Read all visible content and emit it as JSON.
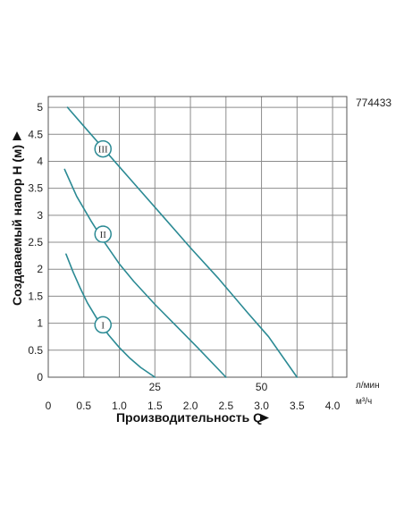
{
  "chart_data": {
    "type": "line",
    "title": "",
    "product_code": "774433",
    "xlabel": "Производительность Q",
    "ylabel": "Создаваемый напор H (м)",
    "x_unit": "м³/ч",
    "secondary_x_unit": "л/мин",
    "xlim": [
      0,
      4.2
    ],
    "ylim": [
      0,
      5.2
    ],
    "x_ticks": [
      0,
      0.5,
      1.0,
      1.5,
      2.0,
      2.5,
      3.0,
      3.5,
      4.0
    ],
    "x_tick_labels": [
      "0",
      "0.5",
      "1.0",
      "1.5",
      "2.0",
      "2.5",
      "3.0",
      "3.5",
      "4.0"
    ],
    "y_ticks": [
      0,
      0.5,
      1,
      1.5,
      2,
      2.5,
      3,
      3.5,
      4,
      4.5,
      5
    ],
    "y_tick_labels": [
      "0",
      "0.5",
      "1",
      "1.5",
      "2",
      "2.5",
      "3",
      "3.5",
      "4",
      "4.5",
      "5"
    ],
    "secondary_x_ticks": [
      {
        "value": 1.5,
        "label": "25"
      },
      {
        "value": 3.0,
        "label": "50"
      }
    ],
    "grid": true,
    "colors": {
      "line": "#2b8a94",
      "grid": "#8c8c8c",
      "frame": "#555555"
    },
    "series": [
      {
        "name": "I",
        "x": [
          0.25,
          0.35,
          0.45,
          0.55,
          0.7,
          0.85,
          1.0,
          1.15,
          1.3,
          1.5
        ],
        "y": [
          2.28,
          1.95,
          1.65,
          1.38,
          1.05,
          0.78,
          0.55,
          0.35,
          0.18,
          0.0
        ],
        "label_at": [
          0.77,
          0.97
        ]
      },
      {
        "name": "II",
        "x": [
          0.23,
          0.4,
          0.6,
          0.8,
          1.0,
          1.2,
          1.5,
          1.8,
          2.1,
          2.5
        ],
        "y": [
          3.85,
          3.35,
          2.9,
          2.48,
          2.1,
          1.78,
          1.35,
          0.95,
          0.55,
          0.0
        ],
        "label_at": [
          0.77,
          2.65
        ]
      },
      {
        "name": "III",
        "x": [
          0.27,
          0.5,
          0.8,
          1.2,
          1.6,
          2.0,
          2.4,
          2.8,
          3.1,
          3.5
        ],
        "y": [
          5.0,
          4.65,
          4.2,
          3.6,
          3.0,
          2.4,
          1.82,
          1.2,
          0.75,
          0.0
        ],
        "label_at": [
          0.77,
          4.23
        ]
      }
    ]
  }
}
